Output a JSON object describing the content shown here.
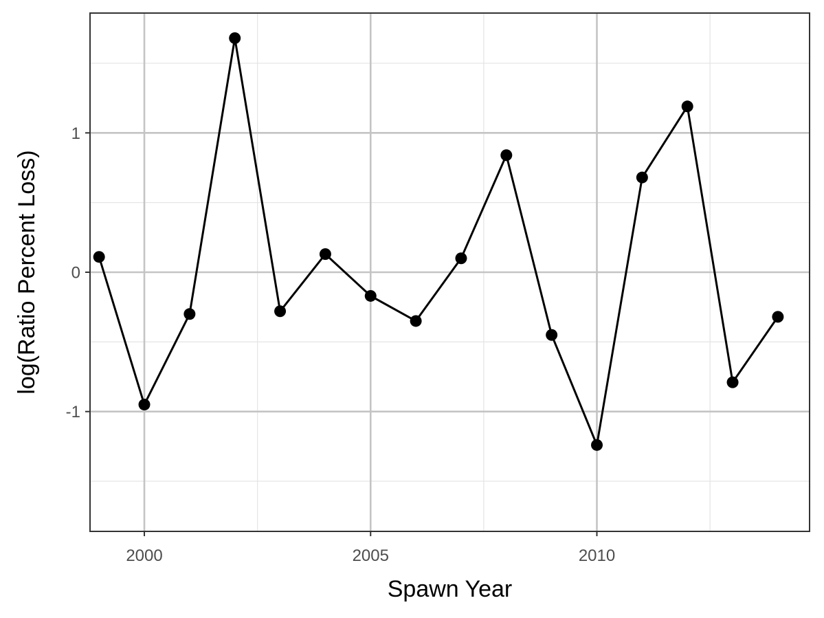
{
  "chart_data": {
    "type": "line",
    "title": "",
    "xlabel": "Spawn Year",
    "ylabel": "log(Ratio Percent Loss)",
    "xlim": [
      1998.8,
      2014.7
    ],
    "ylim": [
      -1.86,
      1.86
    ],
    "x_ticks": [
      2000,
      2005,
      2010
    ],
    "x_minor_ticks": [
      2002.5,
      2007.5,
      2012.5
    ],
    "y_ticks": [
      -1,
      0,
      1
    ],
    "y_minor_ticks": [
      -1.5,
      -0.5,
      0.5,
      1.5
    ],
    "x_tick_labels": [
      "2000",
      "2005",
      "2010"
    ],
    "y_tick_labels": [
      "-1",
      "0",
      "1"
    ],
    "grid": true,
    "legend": "none",
    "line_color": "#000000",
    "series": [
      {
        "x": [
          1999,
          2000,
          2001,
          2002,
          2003,
          2004,
          2005,
          2006,
          2007,
          2008,
          2009,
          2010,
          2011,
          2012,
          2013,
          2014
        ],
        "values": [
          0.11,
          -0.95,
          -0.3,
          1.68,
          -0.28,
          0.13,
          -0.17,
          -0.35,
          0.1,
          0.84,
          -0.45,
          -1.24,
          0.68,
          1.19,
          -0.79,
          -0.32
        ]
      }
    ]
  }
}
